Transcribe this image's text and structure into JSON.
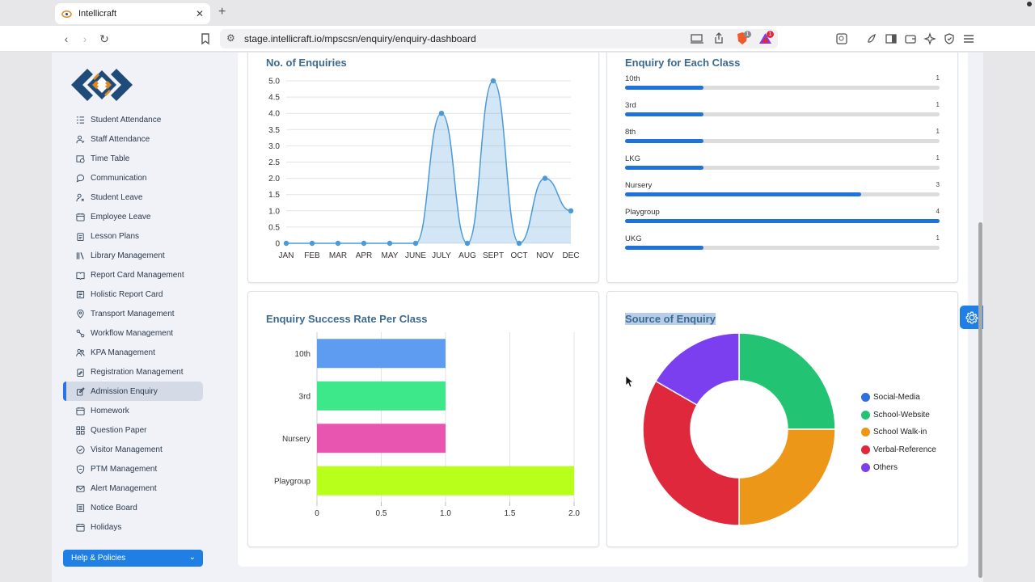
{
  "browser": {
    "tab_title": "Intellicraft",
    "url": "stage.intellicraft.io/mpscsn/enquiry/enquiry-dashboard",
    "extension_badge_1": "1",
    "extension_badge_2": "1"
  },
  "sidebar": {
    "items": [
      {
        "label": "Student Attendance",
        "icon": "checklist-icon"
      },
      {
        "label": "Staff Attendance",
        "icon": "user-check-icon"
      },
      {
        "label": "Time Table",
        "icon": "calendar-clock-icon"
      },
      {
        "label": "Communication",
        "icon": "chat-icon"
      },
      {
        "label": "Student Leave",
        "icon": "user-x-icon"
      },
      {
        "label": "Employee Leave",
        "icon": "calendar-icon"
      },
      {
        "label": "Lesson Plans",
        "icon": "clipboard-icon"
      },
      {
        "label": "Library Management",
        "icon": "books-icon"
      },
      {
        "label": "Report Card Management",
        "icon": "open-book-icon"
      },
      {
        "label": "Holistic Report Card",
        "icon": "report-icon"
      },
      {
        "label": "Transport Management",
        "icon": "map-pin-icon"
      },
      {
        "label": "Workflow Management",
        "icon": "workflow-icon"
      },
      {
        "label": "KPA Management",
        "icon": "users-icon"
      },
      {
        "label": "Registration Management",
        "icon": "clipboard-edit-icon"
      },
      {
        "label": "Admission Enquiry",
        "icon": "admission-icon",
        "active": true
      },
      {
        "label": "Homework",
        "icon": "calendar-icon"
      },
      {
        "label": "Question Paper",
        "icon": "grid-icon"
      },
      {
        "label": "Visitor Management",
        "icon": "check-circle-icon"
      },
      {
        "label": "PTM Management",
        "icon": "shield-icon"
      },
      {
        "label": "Alert Management",
        "icon": "mail-icon"
      },
      {
        "label": "Notice Board",
        "icon": "notice-icon"
      },
      {
        "label": "Holidays",
        "icon": "calendar-icon"
      }
    ],
    "help_label": "Help & Policies"
  },
  "cards": {
    "enquiries_title": "No. of Enquiries",
    "each_class_title": "Enquiry for Each Class",
    "success_title": "Enquiry Success Rate Per Class",
    "source_title": "Source of Enquiry"
  },
  "chart_data": [
    {
      "type": "area",
      "title": "No. of Enquiries",
      "categories": [
        "JAN",
        "FEB",
        "MAR",
        "APR",
        "MAY",
        "JUNE",
        "JULY",
        "AUG",
        "SEPT",
        "OCT",
        "NOV",
        "DEC"
      ],
      "values": [
        0,
        0,
        0,
        0,
        0,
        0,
        4,
        0,
        5,
        0,
        2,
        1
      ],
      "ylim": [
        0,
        5
      ],
      "yticks": [
        "0",
        "0.5",
        "1.0",
        "1.5",
        "2.0",
        "2.5",
        "3.0",
        "3.5",
        "4.0",
        "4.5",
        "5.0"
      ],
      "color": "#4a9ad8",
      "grid": true
    },
    {
      "type": "bar",
      "title": "Enquiry for Each Class",
      "orientation": "horizontal-progress",
      "max": 4,
      "categories": [
        "10th",
        "3rd",
        "8th",
        "LKG",
        "Nursery",
        "Playgroup",
        "UKG"
      ],
      "values": [
        1,
        1,
        1,
        1,
        3,
        4,
        1
      ],
      "color": "#1f73d8"
    },
    {
      "type": "bar",
      "title": "Enquiry Success Rate Per Class",
      "orientation": "horizontal",
      "categories": [
        "10th",
        "3rd",
        "Nursery",
        "Playgroup"
      ],
      "values": [
        1.0,
        1.0,
        1.0,
        2.0
      ],
      "colors": [
        "#5d9cf0",
        "#3ce88a",
        "#e855b0",
        "#b8ff1c"
      ],
      "xlim": [
        0,
        2.0
      ],
      "xticks": [
        "0",
        "0.5",
        "1.0",
        "1.5",
        "2.0"
      ],
      "grid": true
    },
    {
      "type": "pie",
      "title": "Source of Enquiry",
      "donut": true,
      "labels": [
        "Social-Media",
        "School-Website",
        "School Walk-in",
        "Verbal-Reference",
        "Others"
      ],
      "values": [
        0,
        3,
        3,
        4,
        2
      ],
      "colors": [
        "#2f6fe0",
        "#22c373",
        "#ec9718",
        "#e0283c",
        "#7b3ff0"
      ],
      "legend": "right"
    }
  ]
}
